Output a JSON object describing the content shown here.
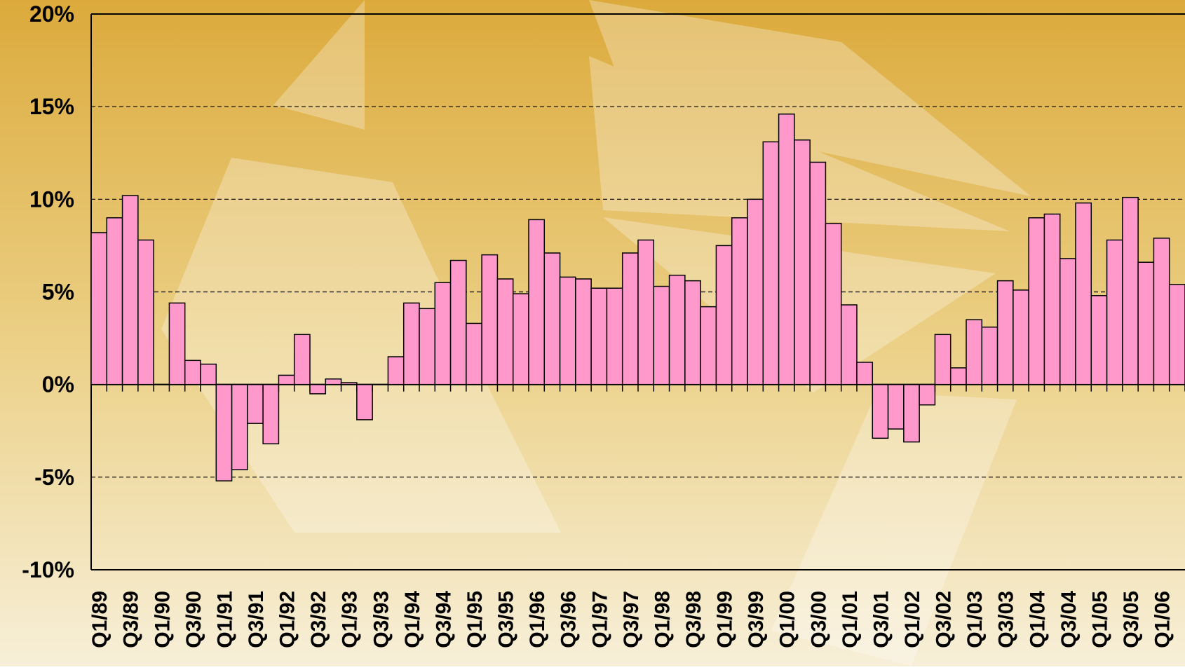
{
  "chart_data": {
    "type": "bar",
    "categories": [
      "Q1/89",
      null,
      "Q3/89",
      null,
      "Q1/90",
      null,
      "Q3/90",
      null,
      "Q1/91",
      null,
      "Q3/91",
      null,
      "Q1/92",
      null,
      "Q3/92",
      null,
      "Q1/93",
      null,
      "Q3/93",
      null,
      "Q1/94",
      null,
      "Q3/94",
      null,
      "Q1/95",
      null,
      "Q3/95",
      null,
      "Q1/96",
      null,
      "Q3/96",
      null,
      "Q1/97",
      null,
      "Q3/97",
      null,
      "Q1/98",
      null,
      "Q3/98",
      null,
      "Q1/99",
      null,
      "Q3/99",
      null,
      "Q1/00",
      null,
      "Q3/00",
      null,
      "Q1/01",
      null,
      "Q3/01",
      null,
      "Q1/02",
      null,
      "Q3/02",
      null,
      "Q1/03",
      null,
      "Q3/03",
      null,
      "Q1/04",
      null,
      "Q3/04",
      null,
      "Q1/05",
      null,
      "Q3/05",
      null,
      "Q1/06",
      null
    ],
    "values": [
      8.2,
      9.0,
      10.2,
      7.8,
      0,
      4.4,
      1.3,
      1.1,
      -5.2,
      -4.6,
      -2.1,
      -3.2,
      0.5,
      2.7,
      -0.5,
      0.3,
      0.1,
      -1.9,
      0,
      1.5,
      4.4,
      4.1,
      5.5,
      6.7,
      3.3,
      7.0,
      5.7,
      4.9,
      8.9,
      7.1,
      5.8,
      5.7,
      5.2,
      5.2,
      7.1,
      7.8,
      5.3,
      5.9,
      5.6,
      4.2,
      7.5,
      9.0,
      10.0,
      13.1,
      14.6,
      13.2,
      12.0,
      8.7,
      4.3,
      1.2,
      -2.9,
      -2.4,
      -3.1,
      -1.1,
      2.7,
      0.9,
      3.5,
      3.1,
      5.6,
      5.1,
      9.0,
      9.2,
      6.8,
      9.8,
      4.8,
      7.8,
      10.1,
      6.6,
      7.9,
      5.4
    ],
    "color": "#ff99cc",
    "ylim": [
      -10,
      20
    ],
    "yticks": [
      {
        "value": -10,
        "label": "-10%"
      },
      {
        "value": -5,
        "label": "-5%"
      },
      {
        "value": 0,
        "label": "0%"
      },
      {
        "value": 5,
        "label": "5%"
      },
      {
        "value": 10,
        "label": "10%"
      },
      {
        "value": 15,
        "label": "15%"
      },
      {
        "value": 20,
        "label": "20%"
      }
    ],
    "grid": true
  }
}
